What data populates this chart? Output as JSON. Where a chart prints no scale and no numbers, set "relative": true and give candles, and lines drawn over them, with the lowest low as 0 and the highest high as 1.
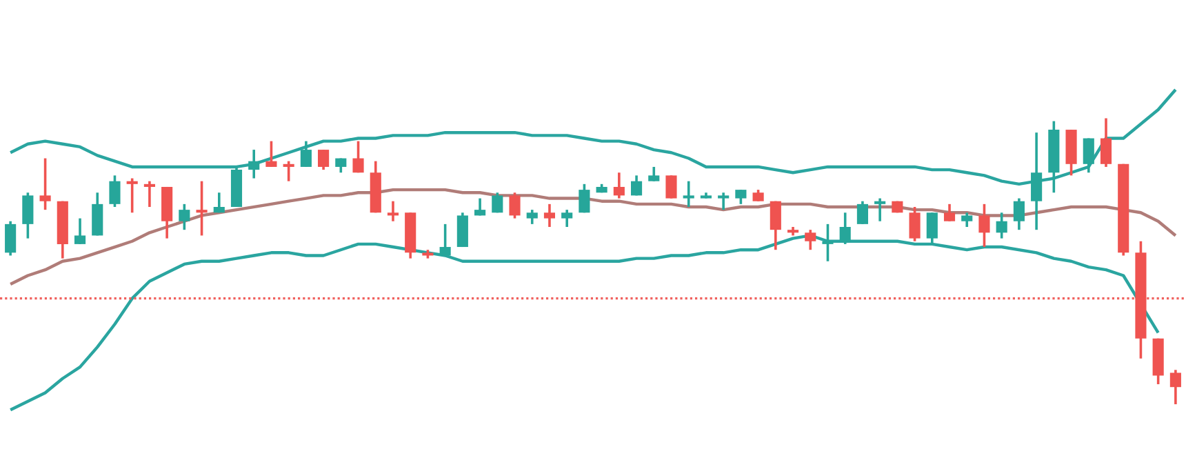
{
  "chart_data": {
    "type": "candlestick",
    "relative": true,
    "categories": [
      null,
      null,
      null,
      null,
      null,
      null,
      null,
      null,
      null,
      null,
      null,
      null,
      null,
      null,
      null,
      null,
      null,
      null,
      null,
      null,
      null,
      null,
      null,
      null,
      null,
      null,
      null,
      null,
      null,
      null,
      null,
      null,
      null,
      null,
      null,
      null,
      null,
      null,
      null,
      null,
      null,
      null,
      null,
      null,
      null,
      null,
      null,
      null,
      null,
      null,
      null,
      null,
      null,
      null,
      null,
      null,
      null,
      null,
      null,
      null,
      null,
      null,
      null,
      null,
      null,
      null,
      null,
      null
    ],
    "ohlc": [
      [
        0.53,
        0.64,
        0.52,
        0.63
      ],
      [
        0.63,
        0.74,
        0.58,
        0.73
      ],
      [
        0.73,
        0.86,
        0.68,
        0.71
      ],
      [
        0.71,
        0.71,
        0.51,
        0.56
      ],
      [
        0.56,
        0.65,
        0.56,
        0.59
      ],
      [
        0.59,
        0.74,
        0.59,
        0.7
      ],
      [
        0.7,
        0.8,
        0.69,
        0.78
      ],
      [
        0.78,
        0.79,
        0.67,
        0.77
      ],
      [
        0.77,
        0.78,
        0.69,
        0.76
      ],
      [
        0.76,
        0.76,
        0.58,
        0.64
      ],
      [
        0.64,
        0.7,
        0.61,
        0.68
      ],
      [
        0.68,
        0.78,
        0.59,
        0.67
      ],
      [
        0.67,
        0.74,
        0.67,
        0.69
      ],
      [
        0.69,
        0.83,
        0.69,
        0.82
      ],
      [
        0.82,
        0.89,
        0.79,
        0.85
      ],
      [
        0.85,
        0.92,
        0.83,
        0.83
      ],
      [
        0.84,
        0.85,
        0.78,
        0.83
      ],
      [
        0.83,
        0.92,
        0.83,
        0.89
      ],
      [
        0.89,
        0.89,
        0.82,
        0.83
      ],
      [
        0.83,
        0.86,
        0.81,
        0.86
      ],
      [
        0.86,
        0.92,
        0.81,
        0.81
      ],
      [
        0.81,
        0.85,
        0.67,
        0.67
      ],
      [
        0.67,
        0.71,
        0.64,
        0.66
      ],
      [
        0.67,
        0.67,
        0.51,
        0.53
      ],
      [
        0.53,
        0.54,
        0.51,
        0.52
      ],
      [
        0.52,
        0.63,
        0.52,
        0.55
      ],
      [
        0.55,
        0.67,
        0.55,
        0.66
      ],
      [
        0.66,
        0.72,
        0.66,
        0.68
      ],
      [
        0.67,
        0.74,
        0.67,
        0.73
      ],
      [
        0.73,
        0.74,
        0.65,
        0.66
      ],
      [
        0.65,
        0.68,
        0.63,
        0.67
      ],
      [
        0.67,
        0.7,
        0.62,
        0.65
      ],
      [
        0.65,
        0.68,
        0.62,
        0.67
      ],
      [
        0.67,
        0.77,
        0.67,
        0.75
      ],
      [
        0.74,
        0.77,
        0.74,
        0.76
      ],
      [
        0.76,
        0.81,
        0.72,
        0.73
      ],
      [
        0.73,
        0.8,
        0.73,
        0.78
      ],
      [
        0.78,
        0.83,
        0.78,
        0.8
      ],
      [
        0.8,
        0.8,
        0.72,
        0.72
      ],
      [
        0.72,
        0.78,
        0.69,
        0.73
      ],
      [
        0.72,
        0.74,
        0.72,
        0.73
      ],
      [
        0.72,
        0.74,
        0.68,
        0.73
      ],
      [
        0.72,
        0.75,
        0.7,
        0.75
      ],
      [
        0.74,
        0.75,
        0.71,
        0.71
      ],
      [
        0.71,
        0.71,
        0.54,
        0.61
      ],
      [
        0.61,
        0.62,
        0.59,
        0.6
      ],
      [
        0.6,
        0.61,
        0.54,
        0.57
      ],
      [
        0.56,
        0.63,
        0.5,
        0.57
      ],
      [
        0.57,
        0.67,
        0.56,
        0.62
      ],
      [
        0.63,
        0.71,
        0.63,
        0.7
      ],
      [
        0.7,
        0.72,
        0.64,
        0.71
      ],
      [
        0.71,
        0.71,
        0.67,
        0.67
      ],
      [
        0.67,
        0.69,
        0.57,
        0.58
      ],
      [
        0.58,
        0.67,
        0.56,
        0.67
      ],
      [
        0.67,
        0.7,
        0.64,
        0.64
      ],
      [
        0.64,
        0.67,
        0.62,
        0.66
      ],
      [
        0.66,
        0.7,
        0.55,
        0.6
      ],
      [
        0.6,
        0.67,
        0.58,
        0.64
      ],
      [
        0.64,
        0.72,
        0.61,
        0.71
      ],
      [
        0.71,
        0.95,
        0.61,
        0.81
      ],
      [
        0.81,
        0.99,
        0.74,
        0.96
      ],
      [
        0.96,
        0.96,
        0.8,
        0.84
      ],
      [
        0.84,
        0.93,
        0.81,
        0.93
      ],
      [
        0.93,
        1.0,
        0.83,
        0.84
      ],
      [
        0.84,
        0.84,
        0.52,
        0.53
      ],
      [
        0.53,
        0.57,
        0.16,
        0.23
      ],
      [
        0.23,
        0.23,
        0.07,
        0.1
      ],
      [
        0.11,
        0.12,
        0,
        0.06
      ]
    ],
    "colors": [
      "#26a69a",
      "#26a69a",
      "#ef5350",
      "#ef5350",
      "#26a69a",
      "#26a69a",
      "#26a69a",
      "#ef5350",
      "#ef5350",
      "#ef5350",
      "#26a69a",
      "#ef5350",
      "#26a69a",
      "#26a69a",
      "#26a69a",
      "#ef5350",
      "#ef5350",
      "#26a69a",
      "#ef5350",
      "#26a69a",
      "#ef5350",
      "#ef5350",
      "#ef5350",
      "#ef5350",
      "#ef5350",
      "#26a69a",
      "#26a69a",
      "#26a69a",
      "#26a69a",
      "#ef5350",
      "#26a69a",
      "#ef5350",
      "#26a69a",
      "#26a69a",
      "#26a69a",
      "#ef5350",
      "#26a69a",
      "#26a69a",
      "#ef5350",
      "#26a69a",
      "#26a69a",
      "#26a69a",
      "#26a69a",
      "#ef5350",
      "#ef5350",
      "#ef5350",
      "#ef5350",
      "#26a69a",
      "#26a69a",
      "#26a69a",
      "#26a69a",
      "#ef5350",
      "#ef5350",
      "#26a69a",
      "#ef5350",
      "#26a69a",
      "#ef5350",
      "#26a69a",
      "#26a69a",
      "#26a69a",
      "#26a69a",
      "#ef5350",
      "#26a69a",
      "#ef5350",
      "#ef5350",
      "#ef5350",
      "#ef5350",
      "#ef5350"
    ],
    "series": [
      {
        "type": "line",
        "color": "#2aa5a0",
        "values": [
          0.88,
          0.91,
          0.92,
          0.91,
          0.9,
          0.87,
          0.85,
          0.83,
          0.83,
          0.83,
          0.83,
          0.83,
          0.83,
          0.83,
          0.84,
          0.86,
          0.88,
          0.9,
          0.92,
          0.92,
          0.93,
          0.93,
          0.94,
          0.94,
          0.94,
          0.95,
          0.95,
          0.95,
          0.95,
          0.95,
          0.94,
          0.94,
          0.94,
          0.93,
          0.92,
          0.92,
          0.91,
          0.89,
          0.88,
          0.86,
          0.83,
          0.83,
          0.83,
          0.83,
          0.82,
          0.81,
          0.82,
          0.83,
          0.83,
          0.83,
          0.83,
          0.83,
          0.83,
          0.82,
          0.82,
          0.81,
          0.8,
          0.78,
          0.77,
          0.78,
          0.79,
          0.81,
          0.83,
          0.93,
          0.93,
          0.98,
          1.03,
          1.1
        ]
      },
      {
        "type": "line",
        "color": "#b07c78",
        "values": [
          0.42,
          0.45,
          0.47,
          0.5,
          0.51,
          0.53,
          0.55,
          0.57,
          0.6,
          0.62,
          0.64,
          0.66,
          0.67,
          0.68,
          0.69,
          0.7,
          0.71,
          0.72,
          0.73,
          0.73,
          0.74,
          0.74,
          0.75,
          0.75,
          0.75,
          0.75,
          0.74,
          0.74,
          0.73,
          0.73,
          0.73,
          0.72,
          0.72,
          0.72,
          0.71,
          0.71,
          0.7,
          0.7,
          0.7,
          0.69,
          0.69,
          0.68,
          0.69,
          0.69,
          0.7,
          0.7,
          0.7,
          0.69,
          0.69,
          0.69,
          0.69,
          0.69,
          0.68,
          0.68,
          0.67,
          0.67,
          0.66,
          0.66,
          0.66,
          0.67,
          0.68,
          0.69,
          0.69,
          0.69,
          0.68,
          0.67,
          0.64,
          0.59
        ]
      },
      {
        "type": "line",
        "color": "#2aa5a0",
        "values": [
          -0.02,
          0.01,
          0.04,
          0.09,
          0.13,
          0.2,
          0.28,
          0.37,
          0.43,
          0.46,
          0.49,
          0.5,
          0.5,
          0.51,
          0.52,
          0.53,
          0.53,
          0.52,
          0.52,
          0.54,
          0.56,
          0.56,
          0.55,
          null,
          0.53,
          0.52,
          0.5,
          0.5,
          0.5,
          0.5,
          0.5,
          0.5,
          0.5,
          0.5,
          0.5,
          0.5,
          0.51,
          0.51,
          0.52,
          0.52,
          0.53,
          0.53,
          0.54,
          0.54,
          0.56,
          0.58,
          0.59,
          0.57,
          0.57,
          0.57,
          0.57,
          0.57,
          0.56,
          0.56,
          0.55,
          0.54,
          0.55,
          0.55,
          0.54,
          0.53,
          0.51,
          0.5,
          0.48,
          0.47,
          0.45,
          null,
          0.25,
          null
        ]
      }
    ],
    "ref_lines": [
      {
        "axis": "y",
        "value": 0.37,
        "color": "#f0605d",
        "line_style": "dotted"
      }
    ]
  }
}
